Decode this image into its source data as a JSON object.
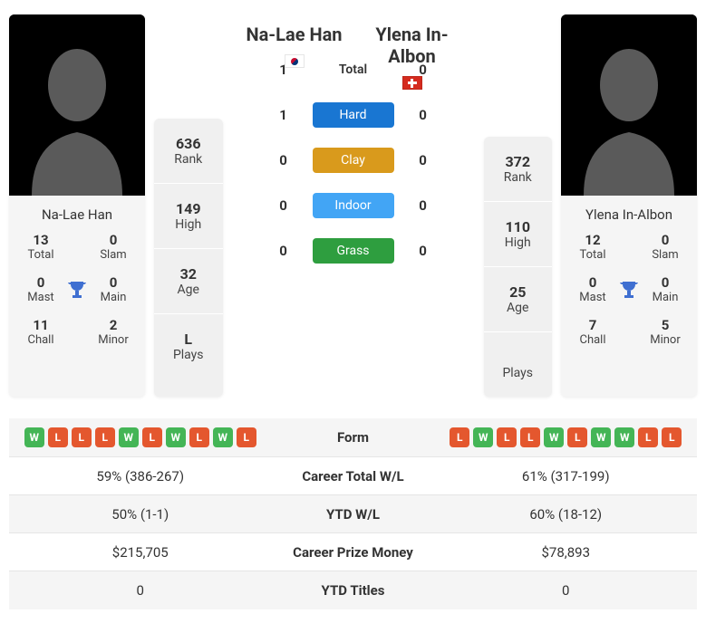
{
  "colors": {
    "hard": "#1976d2",
    "clay": "#d99a1c",
    "indoor": "#42a5f5",
    "grass": "#2e9e3f",
    "win_badge": "#44b556",
    "loss_badge": "#e4572e",
    "trophy": "#3f6fd1",
    "avatar_bg": "#000000",
    "avatar_silhouette": "#5a5a5a",
    "card_bg": "#f5f5f5",
    "stats_bg": "#f0f0f0"
  },
  "labels": {
    "rank": "Rank",
    "high": "High",
    "age": "Age",
    "plays": "Plays",
    "total": "Total",
    "slam": "Slam",
    "mast": "Mast",
    "main": "Main",
    "chall": "Chall",
    "minor": "Minor",
    "surface_total": "Total",
    "surface_hard": "Hard",
    "surface_clay": "Clay",
    "surface_indoor": "Indoor",
    "surface_grass": "Grass",
    "form": "Form",
    "career_wl": "Career Total W/L",
    "ytd_wl": "YTD W/L",
    "prize": "Career Prize Money",
    "ytd_titles": "YTD Titles"
  },
  "player1": {
    "name": "Na-Lae Han",
    "flag_colors": {
      "bg": "#ffffff",
      "symbol1": "#c60c30",
      "symbol2": "#003478"
    },
    "rank": "636",
    "high": "149",
    "age": "32",
    "plays": "L",
    "titles": {
      "total": "13",
      "slam": "0",
      "mast": "0",
      "main": "0",
      "chall": "11",
      "minor": "2"
    },
    "form": [
      "W",
      "L",
      "L",
      "L",
      "W",
      "L",
      "W",
      "L",
      "W",
      "L"
    ],
    "career_wl": "59% (386-267)",
    "ytd_wl": "50% (1-1)",
    "prize": "$215,705",
    "ytd_titles": "0"
  },
  "player2": {
    "name": "Ylena In-Albon",
    "flag_colors": {
      "bg": "#d52b1e",
      "cross": "#ffffff"
    },
    "rank": "372",
    "high": "110",
    "age": "25",
    "plays": "",
    "titles": {
      "total": "12",
      "slam": "0",
      "mast": "0",
      "main": "0",
      "chall": "7",
      "minor": "5"
    },
    "form": [
      "L",
      "W",
      "L",
      "L",
      "W",
      "L",
      "W",
      "W",
      "L",
      "L"
    ],
    "career_wl": "61% (317-199)",
    "ytd_wl": "60% (18-12)",
    "prize": "$78,893",
    "ytd_titles": "0"
  },
  "h2h": {
    "total": {
      "p1": "1",
      "p2": "0"
    },
    "hard": {
      "p1": "1",
      "p2": "0"
    },
    "clay": {
      "p1": "0",
      "p2": "0"
    },
    "indoor": {
      "p1": "0",
      "p2": "0"
    },
    "grass": {
      "p1": "0",
      "p2": "0"
    }
  }
}
